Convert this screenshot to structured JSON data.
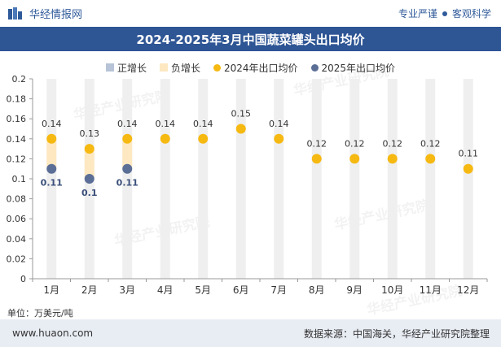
{
  "header": {
    "brand": "华经情报网",
    "tagline_left": "专业严谨",
    "tagline_right": "客观科学"
  },
  "title": "2024-2025年3月中国蔬菜罐头出口均价",
  "legend": [
    {
      "label": "正增长",
      "color": "#b7c3d6",
      "shape": "rect"
    },
    {
      "label": "负增长",
      "color": "#fde8c2",
      "shape": "rect"
    },
    {
      "label": "2024年出口均价",
      "color": "#f6b912",
      "shape": "dot"
    },
    {
      "label": "2025年出口均价",
      "color": "#5a6e96",
      "shape": "dot"
    }
  ],
  "unit": "单位：万美元/吨",
  "footer": {
    "site": "www.huaon.com",
    "source": "数据来源：中国海关，华经产业研究院整理"
  },
  "watermark": "华经产业研究院",
  "chart_data": {
    "type": "line",
    "categories": [
      "1月",
      "2月",
      "3月",
      "4月",
      "5月",
      "6月",
      "7月",
      "8月",
      "9月",
      "10月",
      "11月",
      "12月"
    ],
    "series": [
      {
        "name": "2024年出口均价",
        "values": [
          0.14,
          0.13,
          0.14,
          0.14,
          0.14,
          0.15,
          0.14,
          0.12,
          0.12,
          0.12,
          0.12,
          0.11
        ],
        "color": "#f6b912"
      },
      {
        "name": "2025年出口均价",
        "values": [
          0.11,
          0.1,
          0.11,
          null,
          null,
          null,
          null,
          null,
          null,
          null,
          null,
          null
        ],
        "color": "#5a6e96"
      }
    ],
    "change_bars": {
      "positive_color": "#b7c3d6",
      "negative_color": "#fde8c2",
      "background_color": "#efefef"
    },
    "ylim": [
      0,
      0.2
    ],
    "yticks": [
      "0",
      "0.02",
      "0.04",
      "0.06",
      "0.08",
      "0.1",
      "0.12",
      "0.14",
      "0.16",
      "0.18",
      "0.2"
    ],
    "grid": false,
    "legend_position": "top"
  }
}
